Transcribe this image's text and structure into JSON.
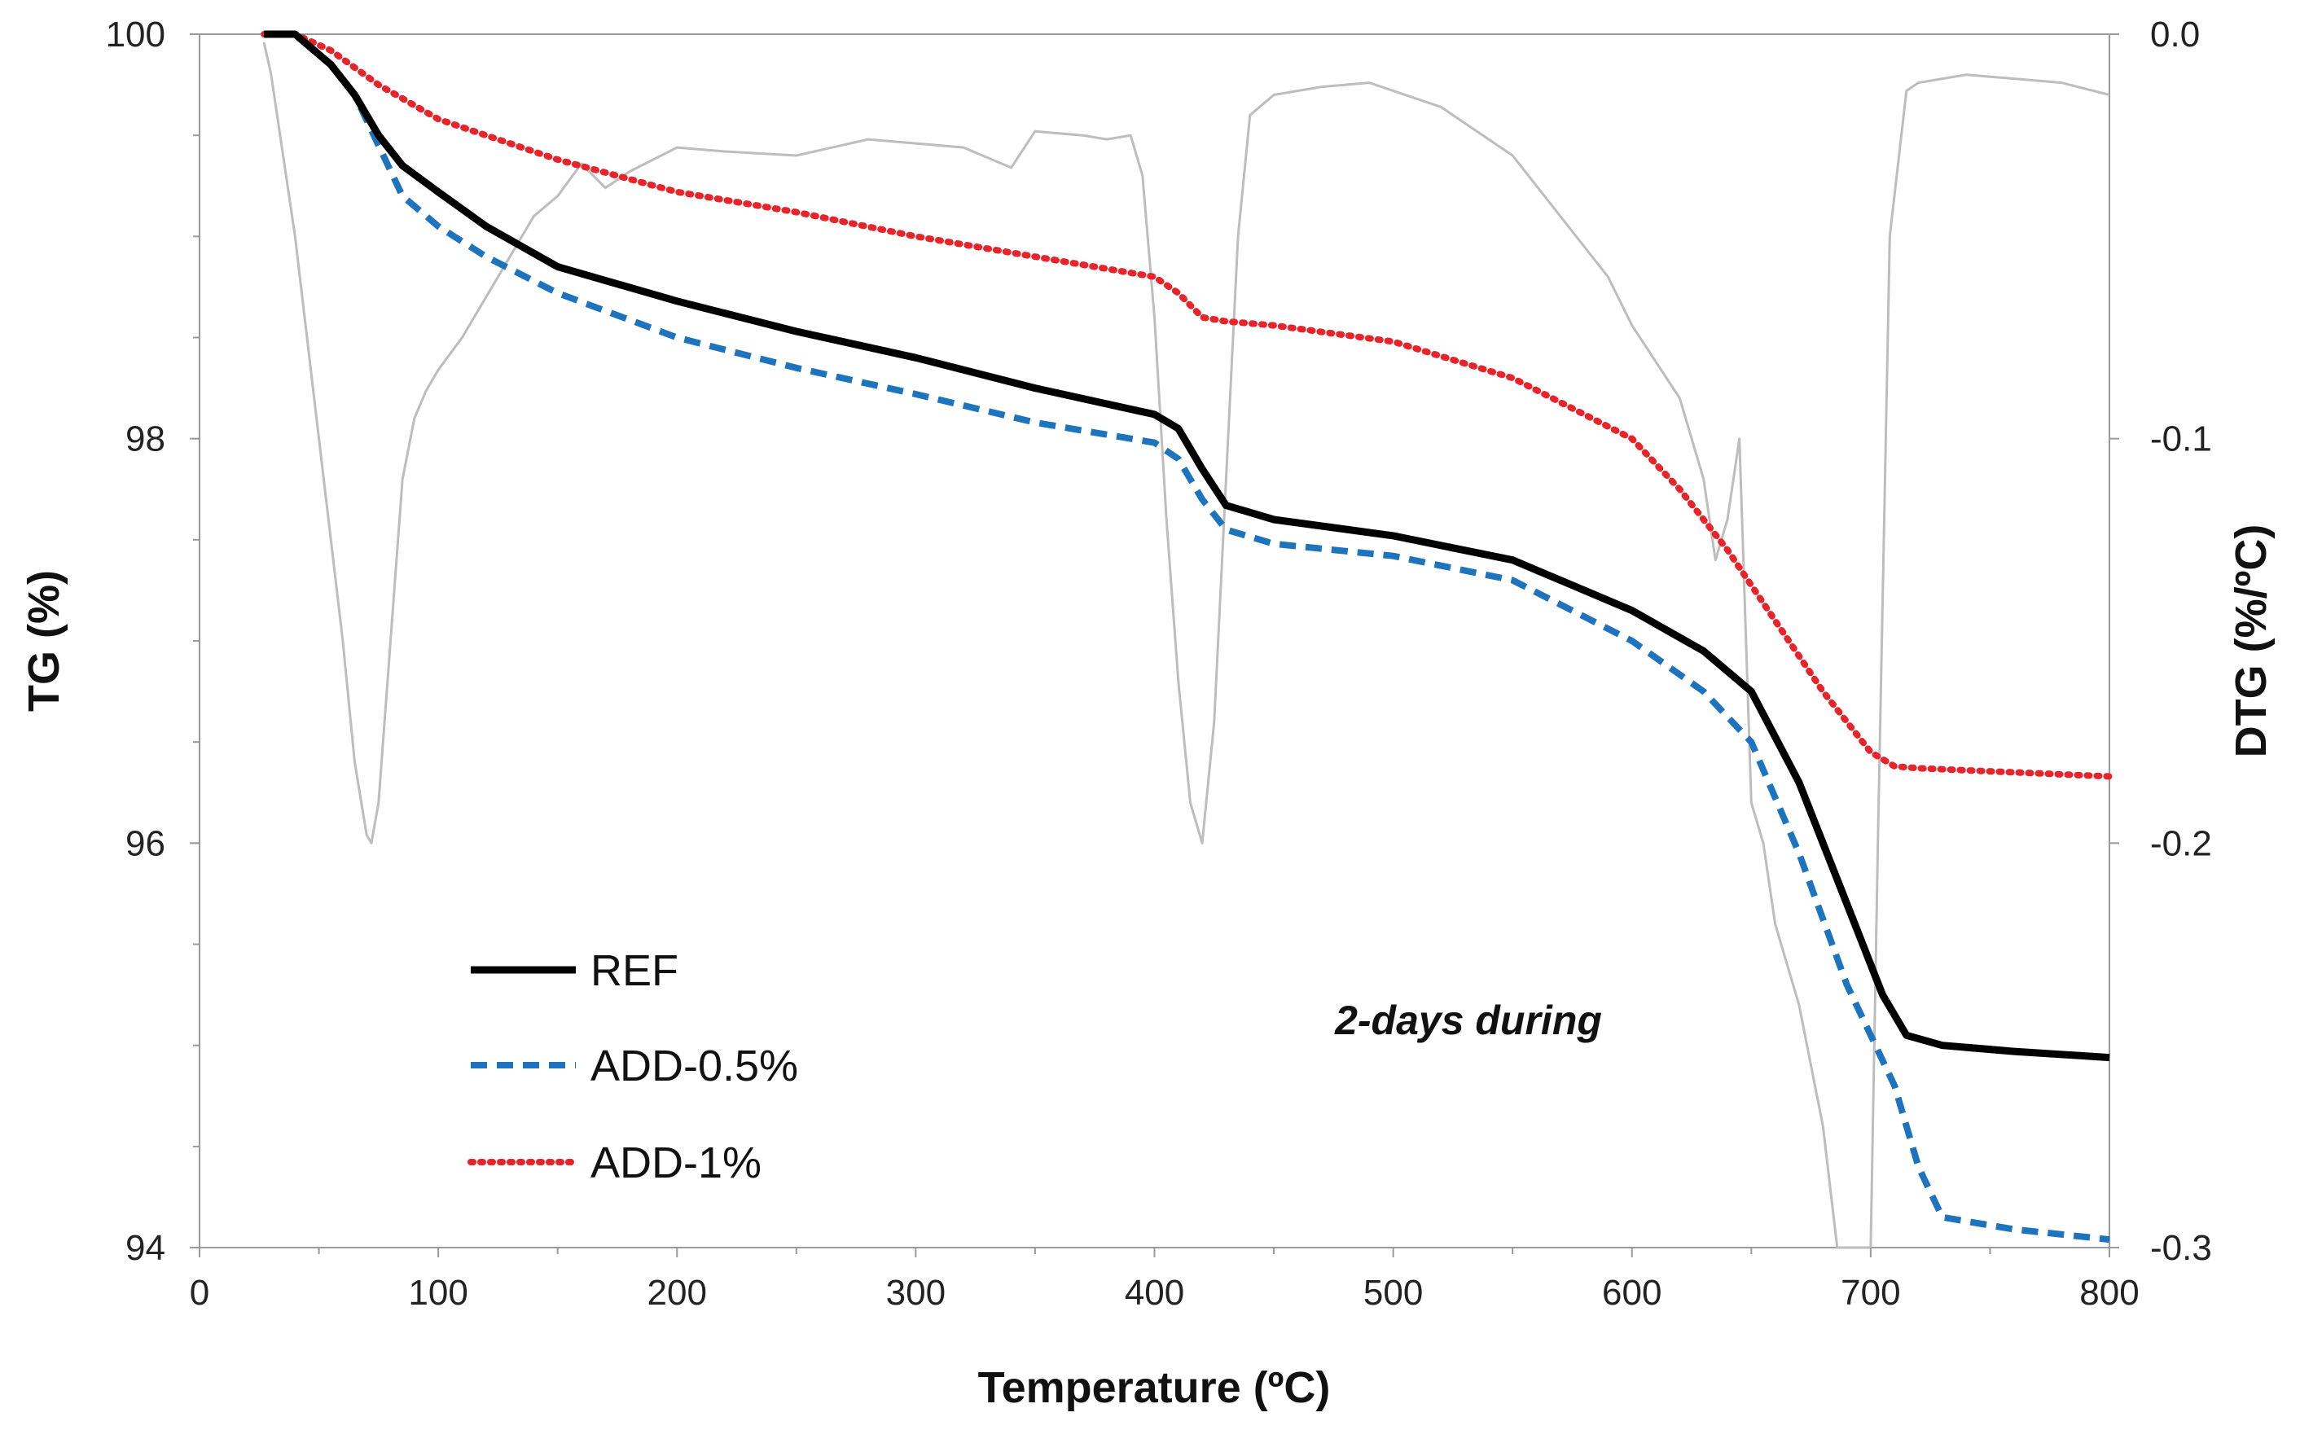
{
  "chart_data": {
    "type": "line",
    "title": "",
    "xlabel": "Temperature (ºC)",
    "ylabel": "TG (%)",
    "y2label": "DTG (%/ºC)",
    "xlim": [
      0,
      800
    ],
    "ylim": [
      94,
      100
    ],
    "y2lim": [
      -0.3,
      0.0
    ],
    "x_ticks": [
      0,
      100,
      200,
      300,
      400,
      500,
      600,
      700,
      800
    ],
    "y_ticks": [
      94,
      96,
      98,
      100
    ],
    "y2_ticks": [
      -0.3,
      -0.2,
      -0.1,
      0.0
    ],
    "x_tick_labels": [
      "0",
      "100",
      "200",
      "300",
      "400",
      "500",
      "600",
      "700",
      "800"
    ],
    "y_tick_labels": [
      "94",
      "96",
      "98",
      "100"
    ],
    "y2_tick_labels": [
      "-0.3",
      "-0.2",
      "-0.1",
      "0.0"
    ],
    "grid": false,
    "legend_position": "bottom-left",
    "annotation": "2-days during",
    "series": [
      {
        "name": "REF",
        "axis": "left",
        "color": "#000000",
        "style": "solid",
        "x": [
          27,
          40,
          55,
          65,
          75,
          85,
          100,
          120,
          150,
          200,
          250,
          300,
          350,
          400,
          410,
          420,
          430,
          450,
          500,
          550,
          600,
          630,
          650,
          670,
          690,
          705,
          715,
          730,
          760,
          800
        ],
        "y": [
          100.0,
          100.0,
          99.85,
          99.7,
          99.5,
          99.35,
          99.22,
          99.05,
          98.85,
          98.68,
          98.53,
          98.4,
          98.25,
          98.12,
          98.05,
          97.85,
          97.67,
          97.6,
          97.52,
          97.4,
          97.15,
          96.95,
          96.75,
          96.3,
          95.7,
          95.25,
          95.05,
          95.0,
          94.97,
          94.94
        ]
      },
      {
        "name": "ADD-0.5%",
        "axis": "left",
        "color": "#1E73BE",
        "style": "dashed",
        "x": [
          27,
          40,
          55,
          65,
          75,
          85,
          100,
          120,
          150,
          200,
          250,
          300,
          350,
          400,
          410,
          420,
          430,
          450,
          500,
          550,
          600,
          630,
          650,
          670,
          690,
          710,
          720,
          730,
          760,
          800
        ],
        "y": [
          100.0,
          100.0,
          99.85,
          99.7,
          99.45,
          99.2,
          99.05,
          98.9,
          98.72,
          98.5,
          98.35,
          98.22,
          98.08,
          97.98,
          97.9,
          97.7,
          97.55,
          97.48,
          97.42,
          97.3,
          97.0,
          96.75,
          96.5,
          95.95,
          95.3,
          94.8,
          94.4,
          94.15,
          94.09,
          94.04
        ]
      },
      {
        "name": "ADD-1%",
        "axis": "left",
        "color": "#E8232A",
        "style": "dotted",
        "x": [
          27,
          40,
          55,
          75,
          100,
          150,
          200,
          250,
          300,
          350,
          400,
          410,
          420,
          430,
          450,
          500,
          550,
          600,
          620,
          640,
          660,
          680,
          700,
          710,
          720,
          760,
          800
        ],
        "y": [
          100.0,
          100.0,
          99.92,
          99.75,
          99.58,
          99.38,
          99.22,
          99.12,
          99.0,
          98.9,
          98.8,
          98.72,
          98.6,
          98.58,
          98.56,
          98.48,
          98.3,
          98.0,
          97.75,
          97.45,
          97.1,
          96.75,
          96.45,
          96.38,
          96.37,
          96.35,
          96.33
        ]
      },
      {
        "name": "DTG",
        "axis": "right",
        "color": "#BDBDBD",
        "style": "solid",
        "in_legend": false,
        "x": [
          27,
          30,
          40,
          50,
          60,
          65,
          70,
          72,
          75,
          80,
          85,
          90,
          95,
          100,
          110,
          120,
          130,
          140,
          150,
          160,
          170,
          180,
          200,
          220,
          250,
          280,
          300,
          320,
          340,
          350,
          370,
          380,
          390,
          395,
          400,
          405,
          410,
          415,
          420,
          425,
          430,
          435,
          440,
          450,
          470,
          490,
          500,
          520,
          550,
          570,
          590,
          600,
          620,
          630,
          635,
          640,
          645,
          650,
          655,
          660,
          670,
          680,
          686,
          700,
          703,
          708,
          715,
          720,
          740,
          760,
          780,
          800
        ],
        "y": [
          -0.002,
          -0.01,
          -0.05,
          -0.1,
          -0.15,
          -0.18,
          -0.198,
          -0.2,
          -0.19,
          -0.15,
          -0.11,
          -0.095,
          -0.088,
          -0.083,
          -0.075,
          -0.065,
          -0.055,
          -0.045,
          -0.04,
          -0.032,
          -0.038,
          -0.034,
          -0.028,
          -0.029,
          -0.03,
          -0.026,
          -0.027,
          -0.028,
          -0.033,
          -0.024,
          -0.025,
          -0.026,
          -0.025,
          -0.035,
          -0.07,
          -0.12,
          -0.16,
          -0.19,
          -0.2,
          -0.17,
          -0.11,
          -0.05,
          -0.02,
          -0.015,
          -0.013,
          -0.012,
          -0.014,
          -0.018,
          -0.03,
          -0.045,
          -0.06,
          -0.072,
          -0.09,
          -0.11,
          -0.13,
          -0.12,
          -0.1,
          -0.19,
          -0.2,
          -0.22,
          -0.24,
          -0.27,
          -0.3,
          -0.3,
          -0.2,
          -0.05,
          -0.014,
          -0.012,
          -0.01,
          -0.011,
          -0.012,
          -0.015
        ]
      }
    ]
  }
}
